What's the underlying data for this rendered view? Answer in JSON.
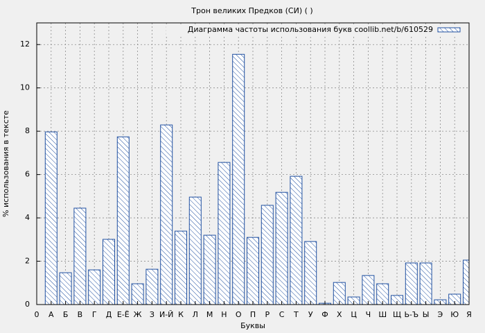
{
  "chart_data": {
    "type": "bar",
    "title": "Трон великих Предков (СИ) ( )",
    "xlabel": "Буквы",
    "ylabel": "% использования в тексте",
    "categories": [
      "0",
      "А",
      "Б",
      "В",
      "Г",
      "Д",
      "Е-Ё",
      "Ж",
      "З",
      "И-Й",
      "К",
      "Л",
      "М",
      "Н",
      "О",
      "П",
      "Р",
      "С",
      "Т",
      "У",
      "Ф",
      "Х",
      "Ц",
      "Ч",
      "Ш",
      "Щ",
      "Ь-Ъ",
      "Ы",
      "Э",
      "Ю",
      "Я"
    ],
    "series": [
      {
        "name": "Диаграмма частоты использования букв coollib.net/b/610529",
        "color": "#1f4fa0",
        "values": [
          null,
          7.97,
          1.47,
          4.45,
          1.6,
          3.01,
          7.74,
          0.96,
          1.63,
          8.29,
          3.39,
          4.96,
          3.2,
          6.56,
          11.55,
          3.1,
          4.58,
          5.18,
          5.92,
          2.91,
          0.06,
          1.02,
          0.35,
          1.34,
          0.96,
          0.42,
          1.92,
          1.92,
          0.22,
          0.48,
          2.05
        ]
      }
    ],
    "ylim": [
      0,
      13
    ],
    "yticks": [
      0,
      2,
      4,
      6,
      8,
      10,
      12
    ],
    "grid": true,
    "legend": "top-right"
  }
}
